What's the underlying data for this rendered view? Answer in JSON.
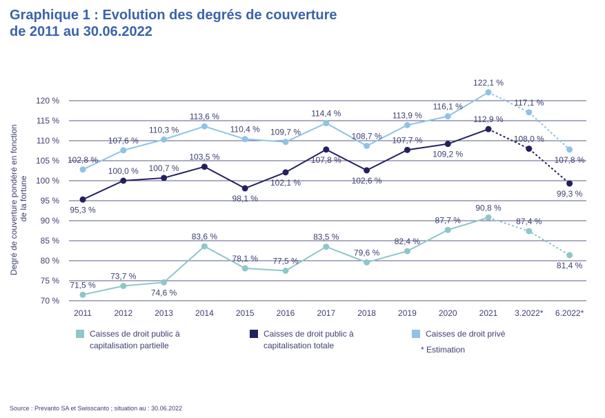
{
  "title_line1": "Graphique 1 : Evolution des degrés de couverture",
  "title_line2": "de 2011 au 30.06.2022",
  "note": "* Estimation",
  "source": "Source : Prevanto SA et Swisscanto ; situation au : 30.06.2022",
  "chart_data": {
    "type": "line",
    "title": "Graphique 1 : Evolution des degrés de couverture de 2011 au 30.06.2022",
    "xlabel": "",
    "ylabel": "Degré de couverture pondéré en fonction de la fortune",
    "ylim": [
      70,
      120
    ],
    "yticks": [
      70,
      75,
      80,
      85,
      90,
      95,
      100,
      105,
      110,
      115,
      120
    ],
    "ytick_labels": [
      "70 %",
      "75 %",
      "80 %",
      "85 %",
      "90 %",
      "95 %",
      "100 %",
      "105 %",
      "110 %",
      "115 %",
      "120 %"
    ],
    "categories": [
      "2011",
      "2012",
      "2013",
      "2014",
      "2015",
      "2016",
      "2017",
      "2018",
      "2019",
      "2020",
      "2021",
      "3.2022*",
      "6.2022*"
    ],
    "estimated_from_index": 10,
    "grid": true,
    "legend_position": "bottom",
    "series": [
      {
        "name": "Caisses de droit public à capitalisation partielle",
        "color": "#8ec6c9",
        "label_color": "#3c3e6f",
        "values": [
          71.5,
          73.7,
          74.6,
          83.6,
          78.1,
          77.5,
          83.5,
          79.6,
          82.4,
          87.7,
          90.8,
          87.4,
          81.4
        ],
        "labels": [
          "71,5 %",
          "73,7 %",
          "74,6 %",
          "83,6 %",
          "78,1 %",
          "77,5 %",
          "83,5 %",
          "79,6 %",
          "82,4 %",
          "87,7 %",
          "90,8 %",
          "87,4 %",
          "81,4 %"
        ]
      },
      {
        "name": "Caisses de droit public à capitalisation totale",
        "color": "#23205f",
        "label_color": "#3c3e6f",
        "values": [
          95.3,
          100.0,
          100.7,
          103.5,
          98.1,
          102.1,
          107.8,
          102.6,
          107.7,
          109.2,
          112.9,
          108.0,
          99.3
        ],
        "labels": [
          "95,3 %",
          "100,0 %",
          "100,7 %",
          "103,5 %",
          "98,1 %",
          "102,1 %",
          "107,8 %",
          "102,6 %",
          "107,7 %",
          "109,2 %",
          "112,9 %",
          "108,0 %",
          "99,3 %"
        ]
      },
      {
        "name": "Caisses de droit privé",
        "color": "#8fc3e6",
        "label_color": "#3c3e6f",
        "values": [
          102.8,
          107.6,
          110.3,
          113.6,
          110.4,
          109.7,
          114.4,
          108.7,
          113.9,
          116.1,
          122.1,
          117.1,
          107.8
        ],
        "labels": [
          "102,8 %",
          "107,6 %",
          "110,3 %",
          "113,6 %",
          "110,4 %",
          "109,7 %",
          "114,4 %",
          "108,7 %",
          "113,9 %",
          "116,1 %",
          "122,1 %",
          "117,1 %",
          "107,8 %"
        ]
      }
    ]
  }
}
